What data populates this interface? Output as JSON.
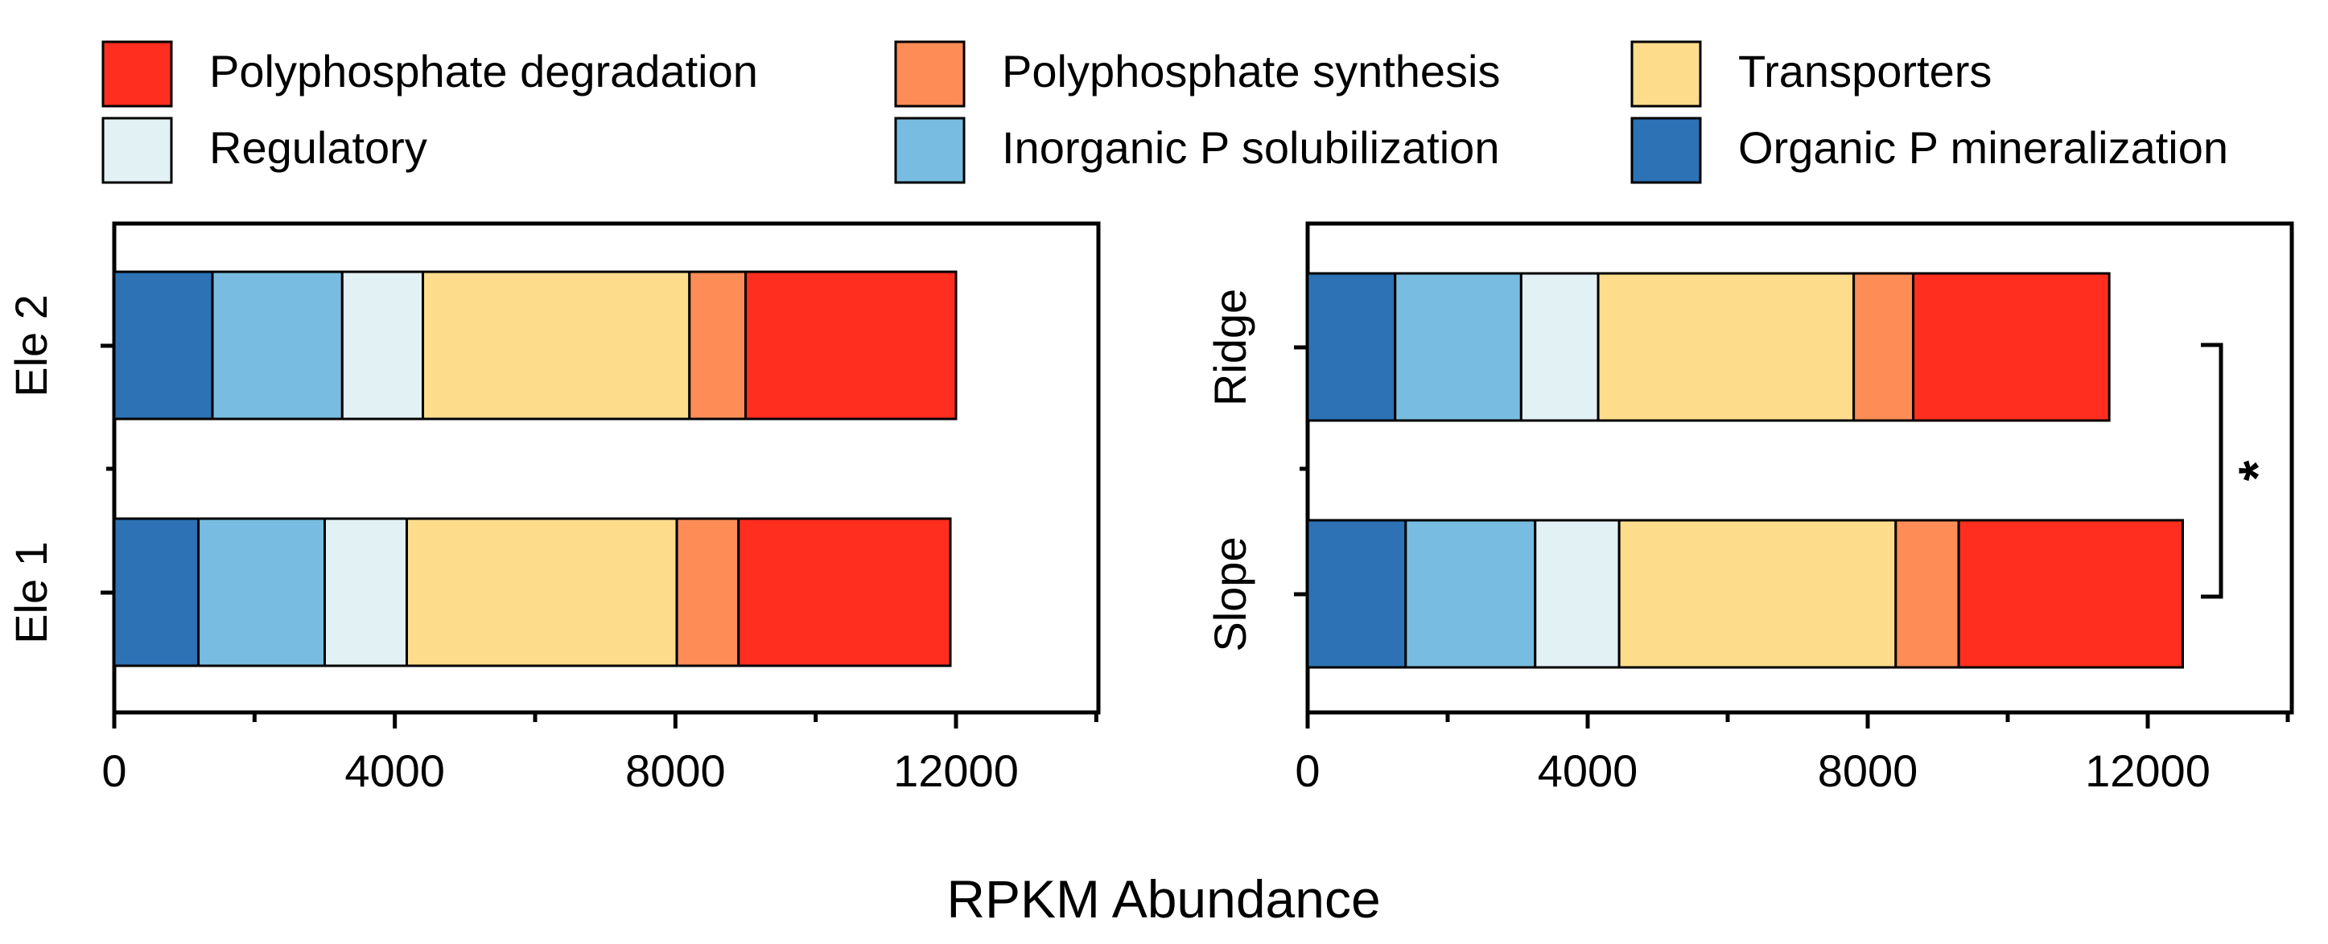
{
  "legend": [
    {
      "label": "Polyphosphate degradation",
      "color": "#ff2e1f"
    },
    {
      "label": "Polyphosphate synthesis",
      "color": "#fe8c56"
    },
    {
      "label": "Transporters",
      "color": "#fddd8c"
    },
    {
      "label": "Regulatory",
      "color": "#e2f1f3"
    },
    {
      "label": "Inorganic P solubilization",
      "color": "#78bde1"
    },
    {
      "label": "Organic P mineralization",
      "color": "#2c72b5"
    }
  ],
  "shared_xlabel": "RPKM Abundance",
  "chart_data": [
    {
      "type": "bar",
      "orientation": "horizontal",
      "stacked": true,
      "title": "",
      "xlabel": "",
      "ylabel": "",
      "xlim": [
        0,
        14000
      ],
      "xticks": [
        0,
        4000,
        8000,
        12000
      ],
      "xtick_labels": [
        "0",
        "4000",
        "8000",
        "12000"
      ],
      "categories": [
        "Ele 2",
        "Ele 1"
      ],
      "series": [
        {
          "name": "Organic P mineralization",
          "values": [
            1400,
            1200
          ]
        },
        {
          "name": "Inorganic P solubilization",
          "values": [
            1850,
            1800
          ]
        },
        {
          "name": "Regulatory",
          "values": [
            1150,
            1170
          ]
        },
        {
          "name": "Transporters",
          "values": [
            3800,
            3850
          ]
        },
        {
          "name": "Polyphosphate synthesis",
          "values": [
            800,
            880
          ]
        },
        {
          "name": "Polyphosphate degradation",
          "values": [
            3000,
            3020
          ]
        }
      ],
      "annotations": []
    },
    {
      "type": "bar",
      "orientation": "horizontal",
      "stacked": true,
      "title": "",
      "xlabel": "",
      "ylabel": "",
      "xlim": [
        0,
        14000
      ],
      "xticks": [
        0,
        4000,
        8000,
        12000
      ],
      "xtick_labels": [
        "0",
        "4000",
        "8000",
        "12000"
      ],
      "categories": [
        "Ridge",
        "Slope"
      ],
      "series": [
        {
          "name": "Organic P mineralization",
          "values": [
            1250,
            1400
          ]
        },
        {
          "name": "Inorganic P solubilization",
          "values": [
            1800,
            1850
          ]
        },
        {
          "name": "Regulatory",
          "values": [
            1100,
            1200
          ]
        },
        {
          "name": "Transporters",
          "values": [
            3650,
            3950
          ]
        },
        {
          "name": "Polyphosphate synthesis",
          "values": [
            850,
            900
          ]
        },
        {
          "name": "Polyphosphate degradation",
          "values": [
            2800,
            3200
          ]
        }
      ],
      "annotations": [
        {
          "type": "significance-bracket",
          "between": [
            "Ridge",
            "Slope"
          ],
          "label": "*"
        }
      ]
    }
  ]
}
